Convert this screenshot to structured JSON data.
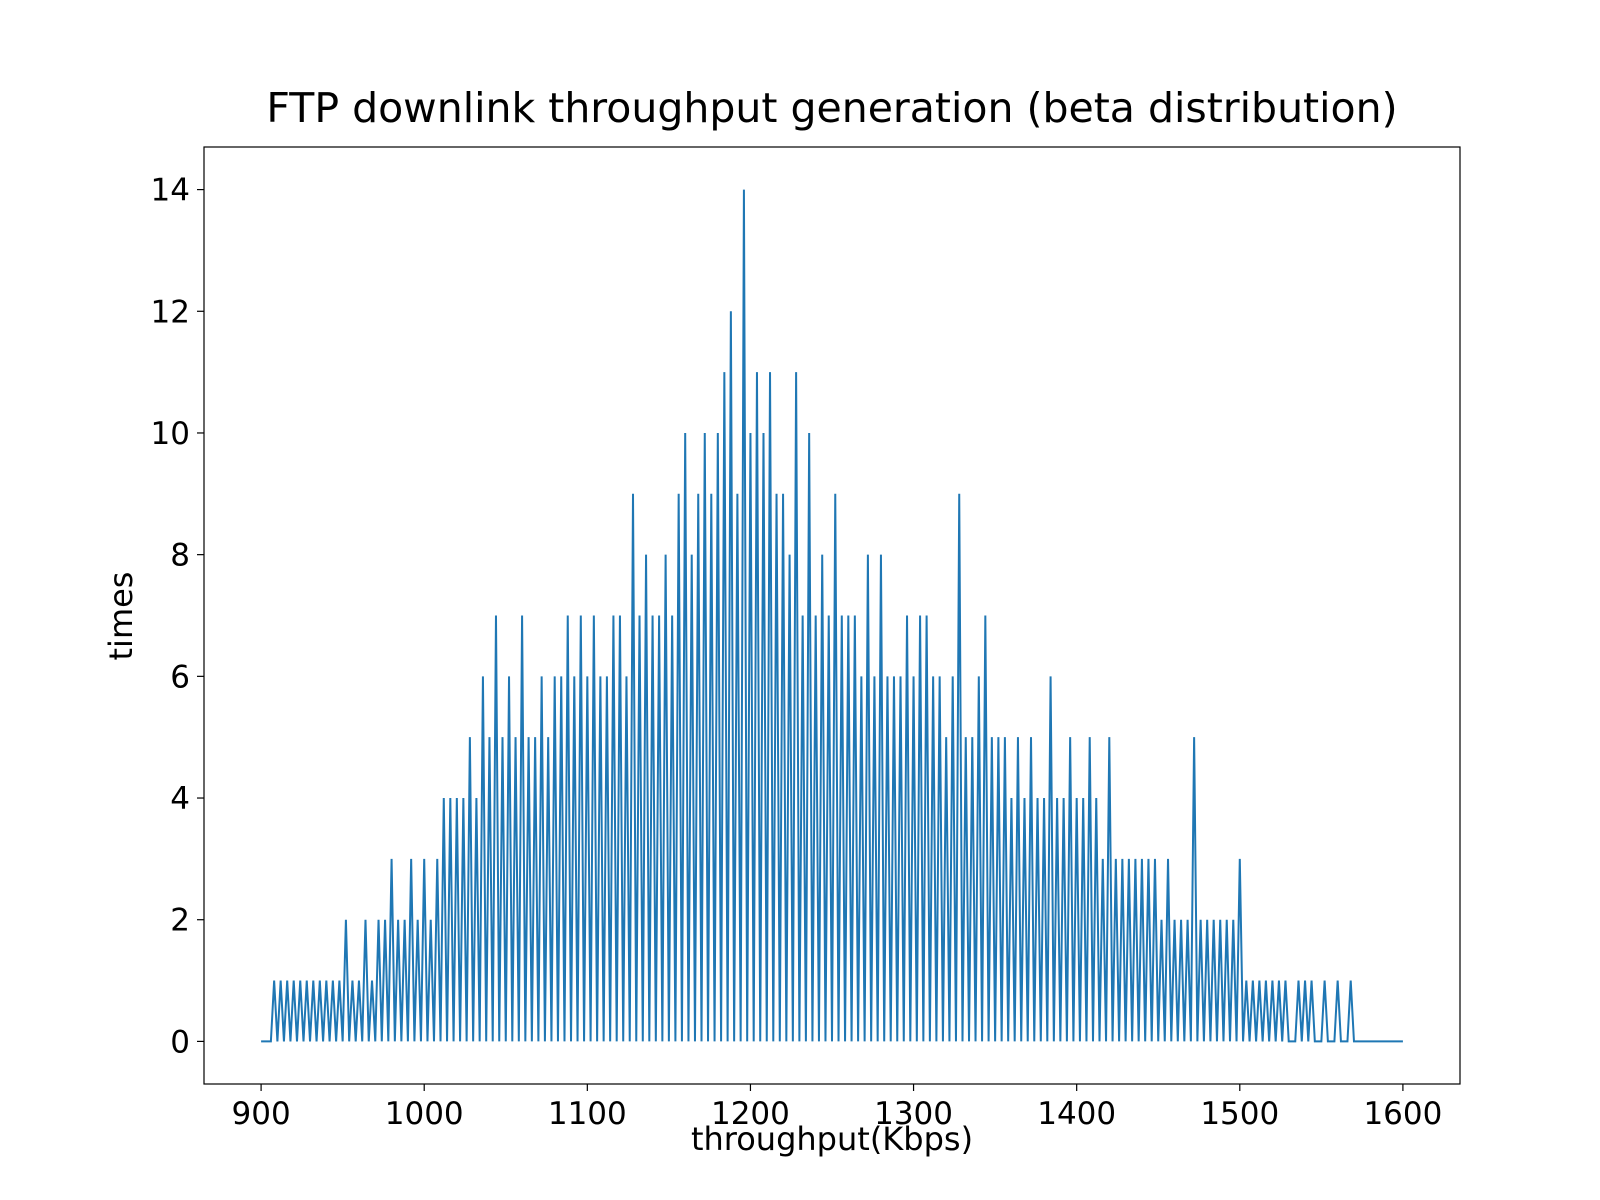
{
  "chart_data": {
    "type": "line",
    "title": "FTP downlink throughput generation (beta distribution)",
    "x_label": "throughput(Kbps)",
    "y_label": "times",
    "color": "#1f77b4",
    "xlim": [
      865,
      1635
    ],
    "ylim": [
      -0.7,
      14.7
    ],
    "xticks": [
      900,
      1000,
      1100,
      1200,
      1300,
      1400,
      1500,
      1600
    ],
    "yticks": [
      0,
      2,
      4,
      6,
      8,
      10,
      12,
      14
    ],
    "grid": false,
    "x": [
      900,
      902,
      904,
      906,
      908,
      910,
      912,
      914,
      916,
      918,
      920,
      922,
      924,
      926,
      928,
      930,
      932,
      934,
      936,
      938,
      940,
      942,
      944,
      946,
      948,
      950,
      952,
      954,
      956,
      958,
      960,
      962,
      964,
      966,
      968,
      970,
      972,
      974,
      976,
      978,
      980,
      982,
      984,
      986,
      988,
      990,
      992,
      994,
      996,
      998,
      1000,
      1002,
      1004,
      1006,
      1008,
      1010,
      1012,
      1014,
      1016,
      1018,
      1020,
      1022,
      1024,
      1026,
      1028,
      1030,
      1032,
      1034,
      1036,
      1038,
      1040,
      1042,
      1044,
      1046,
      1048,
      1050,
      1052,
      1054,
      1056,
      1058,
      1060,
      1062,
      1064,
      1066,
      1068,
      1070,
      1072,
      1074,
      1076,
      1078,
      1080,
      1082,
      1084,
      1086,
      1088,
      1090,
      1092,
      1094,
      1096,
      1098,
      1100,
      1102,
      1104,
      1106,
      1108,
      1110,
      1112,
      1114,
      1116,
      1118,
      1120,
      1122,
      1124,
      1126,
      1128,
      1130,
      1132,
      1134,
      1136,
      1138,
      1140,
      1142,
      1144,
      1146,
      1148,
      1150,
      1152,
      1154,
      1156,
      1158,
      1160,
      1162,
      1164,
      1166,
      1168,
      1170,
      1172,
      1174,
      1176,
      1178,
      1180,
      1182,
      1184,
      1186,
      1188,
      1190,
      1192,
      1194,
      1196,
      1198,
      1200,
      1202,
      1204,
      1206,
      1208,
      1210,
      1212,
      1214,
      1216,
      1218,
      1220,
      1222,
      1224,
      1226,
      1228,
      1230,
      1232,
      1234,
      1236,
      1238,
      1240,
      1242,
      1244,
      1246,
      1248,
      1250,
      1252,
      1254,
      1256,
      1258,
      1260,
      1262,
      1264,
      1266,
      1268,
      1270,
      1272,
      1274,
      1276,
      1278,
      1280,
      1282,
      1284,
      1286,
      1288,
      1290,
      1292,
      1294,
      1296,
      1298,
      1300,
      1302,
      1304,
      1306,
      1308,
      1310,
      1312,
      1314,
      1316,
      1318,
      1320,
      1322,
      1324,
      1326,
      1328,
      1330,
      1332,
      1334,
      1336,
      1338,
      1340,
      1342,
      1344,
      1346,
      1348,
      1350,
      1352,
      1354,
      1356,
      1358,
      1360,
      1362,
      1364,
      1366,
      1368,
      1370,
      1372,
      1374,
      1376,
      1378,
      1380,
      1382,
      1384,
      1386,
      1388,
      1390,
      1392,
      1394,
      1396,
      1398,
      1400,
      1402,
      1404,
      1406,
      1408,
      1410,
      1412,
      1414,
      1416,
      1418,
      1420,
      1422,
      1424,
      1426,
      1428,
      1430,
      1432,
      1434,
      1436,
      1438,
      1440,
      1442,
      1444,
      1446,
      1448,
      1450,
      1452,
      1454,
      1456,
      1458,
      1460,
      1462,
      1464,
      1466,
      1468,
      1470,
      1472,
      1474,
      1476,
      1478,
      1480,
      1482,
      1484,
      1486,
      1488,
      1490,
      1492,
      1494,
      1496,
      1498,
      1500,
      1502,
      1504,
      1506,
      1508,
      1510,
      1512,
      1514,
      1516,
      1518,
      1520,
      1522,
      1524,
      1526,
      1528,
      1530,
      1532,
      1534,
      1536,
      1538,
      1540,
      1542,
      1544,
      1546,
      1548,
      1550,
      1552,
      1554,
      1556,
      1558,
      1560,
      1562,
      1564,
      1566,
      1568,
      1570,
      1572,
      1574,
      1576,
      1578,
      1580,
      1582,
      1584,
      1586,
      1588,
      1590,
      1592,
      1594,
      1596,
      1598,
      1600
    ],
    "values": [
      0,
      0,
      0,
      0,
      1,
      0,
      1,
      0,
      1,
      0,
      1,
      0,
      1,
      0,
      1,
      0,
      1,
      0,
      1,
      0,
      1,
      0,
      1,
      0,
      1,
      0,
      2,
      0,
      1,
      0,
      1,
      0,
      2,
      0,
      1,
      0,
      2,
      0,
      2,
      0,
      3,
      0,
      2,
      0,
      2,
      0,
      3,
      0,
      2,
      0,
      3,
      0,
      2,
      0,
      3,
      0,
      4,
      0,
      4,
      0,
      4,
      0,
      4,
      0,
      5,
      0,
      4,
      0,
      6,
      0,
      5,
      0,
      7,
      0,
      5,
      0,
      6,
      0,
      5,
      0,
      7,
      0,
      5,
      0,
      5,
      0,
      6,
      0,
      5,
      0,
      6,
      0,
      6,
      0,
      7,
      0,
      6,
      0,
      7,
      0,
      6,
      0,
      7,
      0,
      6,
      0,
      6,
      0,
      7,
      0,
      7,
      0,
      6,
      0,
      9,
      0,
      7,
      0,
      8,
      0,
      7,
      0,
      7,
      0,
      8,
      0,
      7,
      0,
      9,
      0,
      10,
      0,
      8,
      0,
      9,
      0,
      10,
      0,
      9,
      0,
      10,
      0,
      11,
      0,
      12,
      0,
      9,
      0,
      14,
      0,
      10,
      0,
      11,
      0,
      10,
      0,
      11,
      0,
      9,
      0,
      9,
      0,
      8,
      0,
      11,
      0,
      7,
      0,
      10,
      0,
      7,
      0,
      8,
      0,
      7,
      0,
      9,
      0,
      7,
      0,
      7,
      0,
      7,
      0,
      6,
      0,
      8,
      0,
      6,
      0,
      8,
      0,
      6,
      0,
      6,
      0,
      6,
      0,
      7,
      0,
      6,
      0,
      7,
      0,
      7,
      0,
      6,
      0,
      6,
      0,
      5,
      0,
      6,
      0,
      9,
      0,
      5,
      0,
      5,
      0,
      6,
      0,
      7,
      0,
      5,
      0,
      5,
      0,
      5,
      0,
      4,
      0,
      5,
      0,
      4,
      0,
      5,
      0,
      4,
      0,
      4,
      0,
      6,
      0,
      4,
      0,
      4,
      0,
      5,
      0,
      4,
      0,
      4,
      0,
      5,
      0,
      4,
      0,
      3,
      0,
      5,
      0,
      3,
      0,
      3,
      0,
      3,
      0,
      3,
      0,
      3,
      0,
      3,
      0,
      3,
      0,
      2,
      0,
      3,
      0,
      2,
      0,
      2,
      0,
      2,
      0,
      5,
      0,
      2,
      0,
      2,
      0,
      2,
      0,
      2,
      0,
      2,
      0,
      2,
      0,
      3,
      0,
      1,
      0,
      1,
      0,
      1,
      0,
      1,
      0,
      1,
      0,
      1,
      0,
      1,
      0,
      0,
      0,
      1,
      0,
      1,
      0,
      1,
      0,
      0,
      0,
      1,
      0,
      0,
      0,
      1,
      0,
      0,
      0,
      1,
      0,
      0,
      0,
      0,
      0,
      0,
      0,
      0,
      0,
      0,
      0,
      0,
      0,
      0,
      0,
      0
    ]
  }
}
